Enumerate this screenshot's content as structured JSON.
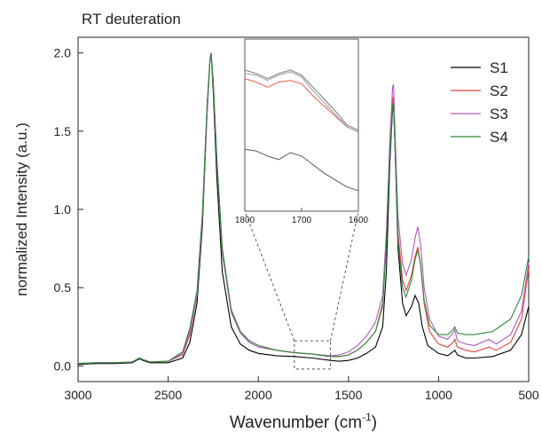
{
  "chart_data": {
    "type": "line",
    "title": "RT deuteration",
    "xlabel": "Wavenumber (cm",
    "xlabel_sup": "-1",
    "xlabel_close": ")",
    "ylabel": "normalized Intensity (a.u.)",
    "xlim": [
      3000,
      500
    ],
    "ylim": [
      -0.1,
      2.1
    ],
    "x_reversed": true,
    "xticks": [
      "3000",
      "2500",
      "2000",
      "1500",
      "1000",
      "500"
    ],
    "yticks": [
      "0.0",
      "0.5",
      "1.0",
      "1.5",
      "2.0"
    ],
    "legend_position": "top-right",
    "grid": false,
    "series": [
      {
        "name": "S1",
        "color": "#000000",
        "points": [
          [
            3000,
            0.01
          ],
          [
            2900,
            0.015
          ],
          [
            2800,
            0.015
          ],
          [
            2700,
            0.02
          ],
          [
            2660,
            0.045
          ],
          [
            2640,
            0.035
          ],
          [
            2600,
            0.02
          ],
          [
            2500,
            0.02
          ],
          [
            2420,
            0.05
          ],
          [
            2380,
            0.15
          ],
          [
            2340,
            0.4
          ],
          [
            2310,
            0.9
          ],
          [
            2285,
            1.6
          ],
          [
            2268,
            1.95
          ],
          [
            2262,
            2.0
          ],
          [
            2250,
            1.75
          ],
          [
            2230,
            1.2
          ],
          [
            2200,
            0.6
          ],
          [
            2150,
            0.25
          ],
          [
            2100,
            0.14
          ],
          [
            2050,
            0.1
          ],
          [
            2000,
            0.08
          ],
          [
            1900,
            0.065
          ],
          [
            1800,
            0.06
          ],
          [
            1700,
            0.05
          ],
          [
            1600,
            0.035
          ],
          [
            1550,
            0.03
          ],
          [
            1500,
            0.035
          ],
          [
            1450,
            0.05
          ],
          [
            1400,
            0.08
          ],
          [
            1350,
            0.12
          ],
          [
            1310,
            0.25
          ],
          [
            1290,
            0.6
          ],
          [
            1270,
            1.3
          ],
          [
            1255,
            1.65
          ],
          [
            1250,
            1.68
          ],
          [
            1240,
            1.35
          ],
          [
            1225,
            0.75
          ],
          [
            1200,
            0.4
          ],
          [
            1180,
            0.32
          ],
          [
            1150,
            0.38
          ],
          [
            1130,
            0.45
          ],
          [
            1110,
            0.4
          ],
          [
            1090,
            0.25
          ],
          [
            1060,
            0.13
          ],
          [
            1000,
            0.08
          ],
          [
            950,
            0.065
          ],
          [
            920,
            0.09
          ],
          [
            910,
            0.1
          ],
          [
            895,
            0.07
          ],
          [
            850,
            0.05
          ],
          [
            800,
            0.05
          ],
          [
            700,
            0.06
          ],
          [
            600,
            0.1
          ],
          [
            540,
            0.2
          ],
          [
            500,
            0.38
          ]
        ]
      },
      {
        "name": "S2",
        "color": "#e8403a",
        "points": [
          [
            3000,
            0.015
          ],
          [
            2900,
            0.02
          ],
          [
            2800,
            0.02
          ],
          [
            2700,
            0.025
          ],
          [
            2660,
            0.05
          ],
          [
            2640,
            0.04
          ],
          [
            2600,
            0.025
          ],
          [
            2500,
            0.03
          ],
          [
            2420,
            0.07
          ],
          [
            2380,
            0.2
          ],
          [
            2340,
            0.45
          ],
          [
            2310,
            0.95
          ],
          [
            2285,
            1.65
          ],
          [
            2268,
            1.96
          ],
          [
            2262,
            2.0
          ],
          [
            2250,
            1.8
          ],
          [
            2230,
            1.3
          ],
          [
            2200,
            0.75
          ],
          [
            2150,
            0.35
          ],
          [
            2100,
            0.22
          ],
          [
            2050,
            0.16
          ],
          [
            2000,
            0.13
          ],
          [
            1900,
            0.1
          ],
          [
            1800,
            0.085
          ],
          [
            1700,
            0.075
          ],
          [
            1600,
            0.06
          ],
          [
            1550,
            0.06
          ],
          [
            1500,
            0.07
          ],
          [
            1450,
            0.1
          ],
          [
            1400,
            0.15
          ],
          [
            1350,
            0.22
          ],
          [
            1310,
            0.4
          ],
          [
            1290,
            0.8
          ],
          [
            1270,
            1.4
          ],
          [
            1255,
            1.7
          ],
          [
            1250,
            1.72
          ],
          [
            1240,
            1.4
          ],
          [
            1225,
            0.85
          ],
          [
            1200,
            0.55
          ],
          [
            1180,
            0.48
          ],
          [
            1150,
            0.58
          ],
          [
            1130,
            0.7
          ],
          [
            1115,
            0.76
          ],
          [
            1100,
            0.65
          ],
          [
            1080,
            0.4
          ],
          [
            1050,
            0.22
          ],
          [
            1000,
            0.14
          ],
          [
            950,
            0.12
          ],
          [
            920,
            0.15
          ],
          [
            910,
            0.17
          ],
          [
            895,
            0.12
          ],
          [
            850,
            0.1
          ],
          [
            800,
            0.09
          ],
          [
            720,
            0.12
          ],
          [
            680,
            0.1
          ],
          [
            600,
            0.15
          ],
          [
            540,
            0.3
          ],
          [
            500,
            0.62
          ]
        ]
      },
      {
        "name": "S3",
        "color": "#b05ac0",
        "points": [
          [
            3000,
            0.015
          ],
          [
            2900,
            0.02
          ],
          [
            2800,
            0.02
          ],
          [
            2700,
            0.025
          ],
          [
            2660,
            0.05
          ],
          [
            2640,
            0.04
          ],
          [
            2600,
            0.025
          ],
          [
            2500,
            0.03
          ],
          [
            2420,
            0.08
          ],
          [
            2380,
            0.22
          ],
          [
            2340,
            0.45
          ],
          [
            2310,
            0.95
          ],
          [
            2285,
            1.6
          ],
          [
            2268,
            1.95
          ],
          [
            2262,
            1.99
          ],
          [
            2250,
            1.8
          ],
          [
            2230,
            1.3
          ],
          [
            2200,
            0.72
          ],
          [
            2150,
            0.34
          ],
          [
            2100,
            0.21
          ],
          [
            2050,
            0.15
          ],
          [
            2000,
            0.12
          ],
          [
            1900,
            0.1
          ],
          [
            1800,
            0.085
          ],
          [
            1700,
            0.075
          ],
          [
            1600,
            0.065
          ],
          [
            1550,
            0.07
          ],
          [
            1500,
            0.09
          ],
          [
            1450,
            0.13
          ],
          [
            1400,
            0.19
          ],
          [
            1350,
            0.28
          ],
          [
            1310,
            0.45
          ],
          [
            1290,
            0.85
          ],
          [
            1270,
            1.45
          ],
          [
            1255,
            1.78
          ],
          [
            1250,
            1.8
          ],
          [
            1240,
            1.45
          ],
          [
            1225,
            0.95
          ],
          [
            1200,
            0.65
          ],
          [
            1180,
            0.58
          ],
          [
            1150,
            0.68
          ],
          [
            1130,
            0.82
          ],
          [
            1115,
            0.89
          ],
          [
            1100,
            0.78
          ],
          [
            1080,
            0.5
          ],
          [
            1050,
            0.3
          ],
          [
            1000,
            0.19
          ],
          [
            950,
            0.17
          ],
          [
            920,
            0.21
          ],
          [
            910,
            0.23
          ],
          [
            895,
            0.16
          ],
          [
            850,
            0.14
          ],
          [
            800,
            0.13
          ],
          [
            720,
            0.17
          ],
          [
            680,
            0.14
          ],
          [
            600,
            0.2
          ],
          [
            540,
            0.35
          ],
          [
            500,
            0.66
          ]
        ]
      },
      {
        "name": "S4",
        "color": "#2a8a3a",
        "points": [
          [
            3000,
            0.015
          ],
          [
            2900,
            0.02
          ],
          [
            2800,
            0.02
          ],
          [
            2700,
            0.025
          ],
          [
            2660,
            0.05
          ],
          [
            2640,
            0.04
          ],
          [
            2600,
            0.025
          ],
          [
            2500,
            0.03
          ],
          [
            2420,
            0.09
          ],
          [
            2380,
            0.24
          ],
          [
            2340,
            0.48
          ],
          [
            2310,
            0.98
          ],
          [
            2285,
            1.65
          ],
          [
            2268,
            1.96
          ],
          [
            2262,
            2.0
          ],
          [
            2250,
            1.82
          ],
          [
            2230,
            1.32
          ],
          [
            2200,
            0.75
          ],
          [
            2150,
            0.36
          ],
          [
            2100,
            0.22
          ],
          [
            2050,
            0.16
          ],
          [
            2000,
            0.13
          ],
          [
            1900,
            0.1
          ],
          [
            1800,
            0.085
          ],
          [
            1700,
            0.075
          ],
          [
            1600,
            0.06
          ],
          [
            1550,
            0.06
          ],
          [
            1500,
            0.07
          ],
          [
            1450,
            0.1
          ],
          [
            1400,
            0.15
          ],
          [
            1350,
            0.22
          ],
          [
            1310,
            0.38
          ],
          [
            1290,
            0.78
          ],
          [
            1270,
            1.35
          ],
          [
            1255,
            1.66
          ],
          [
            1250,
            1.68
          ],
          [
            1240,
            1.35
          ],
          [
            1225,
            0.8
          ],
          [
            1200,
            0.5
          ],
          [
            1180,
            0.44
          ],
          [
            1150,
            0.55
          ],
          [
            1130,
            0.68
          ],
          [
            1115,
            0.74
          ],
          [
            1100,
            0.65
          ],
          [
            1080,
            0.42
          ],
          [
            1050,
            0.26
          ],
          [
            1000,
            0.2
          ],
          [
            950,
            0.2
          ],
          [
            920,
            0.23
          ],
          [
            910,
            0.25
          ],
          [
            895,
            0.21
          ],
          [
            850,
            0.2
          ],
          [
            800,
            0.2
          ],
          [
            700,
            0.22
          ],
          [
            600,
            0.3
          ],
          [
            540,
            0.45
          ],
          [
            500,
            0.7
          ]
        ]
      }
    ],
    "zoom_region": {
      "x": [
        1800,
        1600
      ],
      "y": [
        -0.02,
        0.16
      ]
    },
    "inset": {
      "xlim": [
        1800,
        1600
      ],
      "xticks": [
        "1800",
        "1700",
        "1600"
      ],
      "series": [
        {
          "color": "#777777",
          "points": [
            [
              1800,
              0.82
            ],
            [
              1780,
              0.8
            ],
            [
              1760,
              0.77
            ],
            [
              1740,
              0.8
            ],
            [
              1720,
              0.82
            ],
            [
              1700,
              0.79
            ],
            [
              1680,
              0.72
            ],
            [
              1660,
              0.65
            ],
            [
              1640,
              0.58
            ],
            [
              1620,
              0.5
            ],
            [
              1600,
              0.47
            ]
          ]
        },
        {
          "color": "#e8604a",
          "points": [
            [
              1800,
              0.77
            ],
            [
              1780,
              0.75
            ],
            [
              1760,
              0.72
            ],
            [
              1740,
              0.75
            ],
            [
              1720,
              0.76
            ],
            [
              1700,
              0.74
            ],
            [
              1680,
              0.67
            ],
            [
              1660,
              0.61
            ],
            [
              1640,
              0.55
            ],
            [
              1620,
              0.49
            ],
            [
              1600,
              0.46
            ]
          ]
        },
        {
          "color": "#9a9a9a",
          "points": [
            [
              1800,
              0.8
            ],
            [
              1780,
              0.79
            ],
            [
              1760,
              0.76
            ],
            [
              1740,
              0.79
            ],
            [
              1720,
              0.81
            ],
            [
              1700,
              0.78
            ],
            [
              1680,
              0.7
            ],
            [
              1660,
              0.63
            ],
            [
              1640,
              0.56
            ],
            [
              1620,
              0.49
            ],
            [
              1600,
              0.46
            ]
          ]
        },
        {
          "color": "#555555",
          "points": [
            [
              1800,
              0.36
            ],
            [
              1780,
              0.35
            ],
            [
              1760,
              0.32
            ],
            [
              1740,
              0.3
            ],
            [
              1720,
              0.34
            ],
            [
              1700,
              0.32
            ],
            [
              1680,
              0.27
            ],
            [
              1660,
              0.22
            ],
            [
              1640,
              0.18
            ],
            [
              1620,
              0.14
            ],
            [
              1600,
              0.12
            ]
          ]
        }
      ]
    }
  }
}
